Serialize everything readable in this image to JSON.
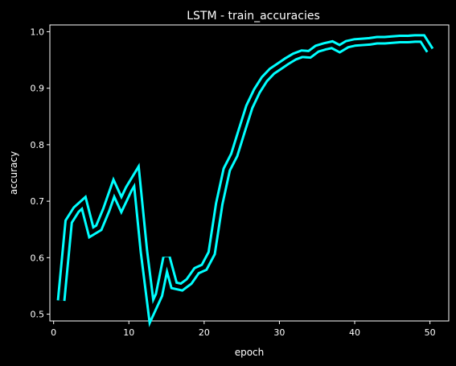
{
  "chart_data": {
    "type": "line",
    "title": "LSTM - train_accuracies",
    "xlabel": "epoch",
    "ylabel": "accuracy",
    "xlim": [
      -0.5,
      52.5
    ],
    "ylim": [
      0.488,
      1.012
    ],
    "x_ticks": [
      0,
      10,
      20,
      30,
      40,
      50
    ],
    "x_tick_labels": [
      "0",
      "10",
      "20",
      "30",
      "40",
      "50"
    ],
    "y_ticks": [
      0.5,
      0.6,
      0.7,
      0.8,
      0.9,
      1.0
    ],
    "y_tick_labels": [
      "0.5",
      "0.6",
      "0.7",
      "0.8",
      "0.9",
      "1.0"
    ],
    "grid": false,
    "background": "#000000",
    "foreground": "#ffffff",
    "line_color": "#00ffff",
    "series": [
      {
        "x": [
          1,
          2,
          3,
          4,
          5,
          6,
          7,
          8,
          9,
          10,
          11,
          12,
          13,
          14,
          15,
          16,
          17,
          18,
          19,
          20,
          21,
          22,
          23,
          24,
          25,
          26,
          27,
          28,
          29,
          30,
          31,
          32,
          33,
          34,
          35,
          36,
          37,
          38,
          39,
          40,
          41,
          42,
          43,
          44,
          45,
          46,
          47,
          48,
          49,
          50
        ],
        "values": [
          0.524,
          0.664,
          0.685,
          0.697,
          0.645,
          0.653,
          0.685,
          0.723,
          0.694,
          0.722,
          0.744,
          0.611,
          0.505,
          0.534,
          0.6,
          0.551,
          0.548,
          0.558,
          0.577,
          0.583,
          0.608,
          0.695,
          0.756,
          0.782,
          0.825,
          0.867,
          0.895,
          0.916,
          0.93,
          0.939,
          0.948,
          0.956,
          0.961,
          0.96,
          0.97,
          0.974,
          0.977,
          0.97,
          0.978,
          0.981,
          0.982,
          0.983,
          0.985,
          0.985,
          0.986,
          0.987,
          0.987,
          0.988,
          0.988,
          0.967
        ]
      }
    ]
  }
}
